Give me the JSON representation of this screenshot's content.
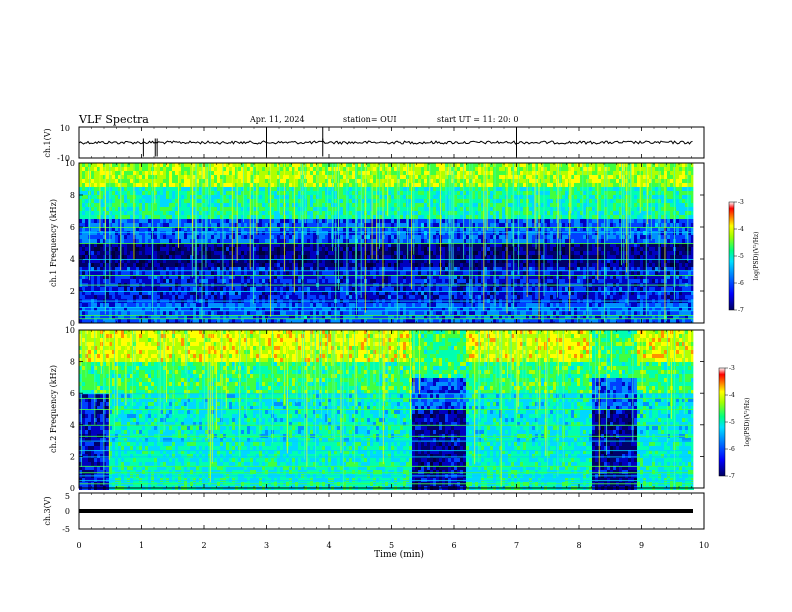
{
  "header": {
    "title": "VLF Spectra",
    "date": "Apr. 11, 2024",
    "station_label": "station= OUI",
    "start_label": "start  UT =   11: 20: 0"
  },
  "panels": {
    "ch1_wave": {
      "ylabel": "ch.1(V)",
      "y_ticks": [
        "10",
        "-10"
      ]
    },
    "ch1_spec": {
      "ylabel": "ch.1 Frequency (kHz)",
      "y_ticks": [
        "0",
        "2",
        "4",
        "6",
        "8",
        "10"
      ]
    },
    "ch2_spec": {
      "ylabel": "ch.2 Frequency (kHz)",
      "y_ticks": [
        "0",
        "2",
        "4",
        "6",
        "8",
        "10"
      ]
    },
    "ch3_wave": {
      "ylabel": "ch.3(V)",
      "y_ticks": [
        "5",
        "0",
        "-5"
      ]
    }
  },
  "colorbar": {
    "label": "log(PSD)(V²/Hz)",
    "ticks": [
      "-3",
      "-4",
      "-5",
      "-6",
      "-7"
    ],
    "colors": [
      "#000080",
      "#0000ff",
      "#0080ff",
      "#00ffff",
      "#00ff80",
      "#80ff00",
      "#ffff00",
      "#ff8000",
      "#ff0000",
      "#ffc0c0",
      "#ffffff"
    ]
  },
  "chart_data": [
    {
      "type": "line",
      "title": "VLF Spectra",
      "ylabel": "ch.1(V)",
      "ylim": [
        -10,
        10
      ],
      "xlim": [
        0,
        10
      ],
      "series": [
        {
          "values": [
            0,
            0,
            0,
            0,
            0,
            0,
            0,
            0,
            0,
            0
          ]
        }
      ]
    },
    {
      "type": "heatmap",
      "xlabel": "",
      "ylabel": "Frequency (kHz)",
      "xlim": [
        0,
        10
      ],
      "ylim": [
        0,
        10
      ],
      "x_end_min": 9.83,
      "colorbar_range": [
        -7,
        -3
      ],
      "bright_band_khz": [
        6,
        10
      ],
      "quiet_band_khz": [
        0,
        5
      ]
    },
    {
      "type": "heatmap",
      "xlabel": "",
      "ylabel": "Frequency (kHz)",
      "xlim": [
        0,
        10
      ],
      "ylim": [
        0,
        10
      ],
      "x_end_min": 9.83,
      "colorbar_range": [
        -7,
        -3
      ],
      "quiet_intervals_min": [
        [
          5.3,
          6.15
        ],
        [
          8.2,
          8.9
        ]
      ]
    },
    {
      "type": "line",
      "xlabel": "Time (min)",
      "ylabel": "ch.3(V)",
      "ylim": [
        -5,
        5
      ],
      "xlim": [
        0,
        10
      ],
      "x_ticks": [
        "0",
        "1",
        "2",
        "3",
        "4",
        "5",
        "6",
        "7",
        "8",
        "9",
        "10"
      ],
      "series": [
        {
          "values": [
            -1,
            -1,
            -1,
            -1,
            -1,
            -1,
            -1,
            -1,
            -1,
            -1
          ]
        }
      ]
    }
  ]
}
